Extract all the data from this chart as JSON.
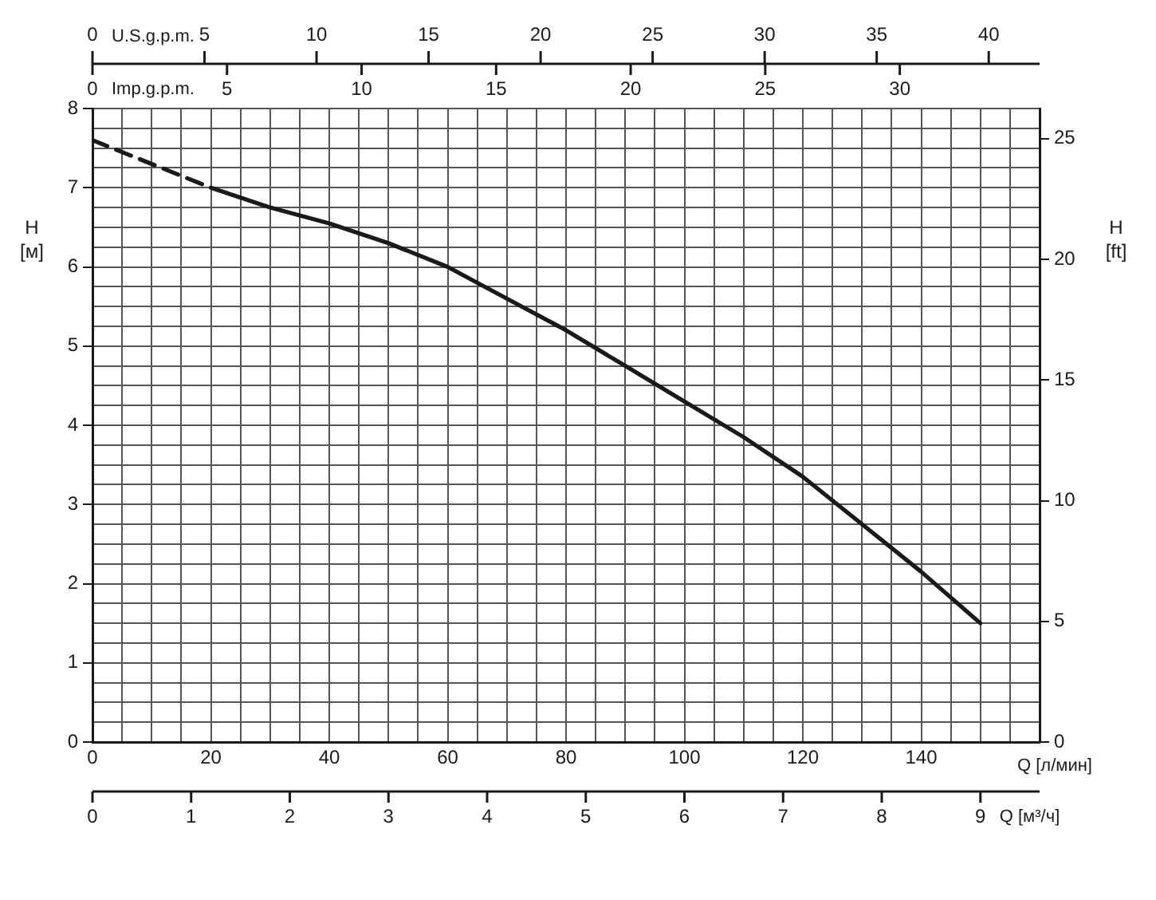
{
  "chart_data": {
    "type": "line",
    "xlabel": "Q [л/мин]",
    "x2label": "U.S.g.p.m.",
    "ylabel": "H [м]",
    "y2label": "H [ft]",
    "xlim": [
      0,
      160
    ],
    "xticks": [
      0,
      {
        "value": 5,
        "label": null
      },
      {
        "value": 10,
        "label": null
      },
      {
        "value": 15,
        "label": null
      },
      20,
      {
        "value": 25,
        "label": null
      },
      {
        "value": 30,
        "label": null
      },
      {
        "value": 35,
        "label": null
      },
      40,
      {
        "value": 45,
        "label": null
      },
      {
        "value": 50,
        "label": null
      },
      {
        "value": 55,
        "label": null
      },
      60,
      {
        "value": 65,
        "label": null
      },
      {
        "value": 70,
        "label": null
      },
      {
        "value": 75,
        "label": null
      },
      80,
      {
        "value": 85,
        "label": null
      },
      {
        "value": 90,
        "label": null
      },
      {
        "value": 95,
        "label": null
      },
      100,
      {
        "value": 105,
        "label": null
      },
      {
        "value": 110,
        "label": null
      },
      {
        "value": 115,
        "label": null
      },
      120,
      {
        "value": 125,
        "label": null
      },
      {
        "value": 130,
        "label": null
      },
      {
        "value": 135,
        "label": null
      },
      140,
      {
        "value": 145,
        "label": null
      },
      {
        "value": 150,
        "label": null
      },
      {
        "value": 155,
        "label": null
      }
    ],
    "x2lim": [
      0,
      42.27
    ],
    "x2ticks": [
      0,
      5,
      10,
      15,
      20,
      25,
      30,
      35,
      40
    ],
    "ylim": [
      0,
      8
    ],
    "yticks": [
      0,
      {
        "value": 0.25,
        "label": null
      },
      {
        "value": 0.5,
        "label": null
      },
      {
        "value": 0.75,
        "label": null
      },
      1,
      {
        "value": 1.25,
        "label": null
      },
      {
        "value": 1.5,
        "label": null
      },
      {
        "value": 1.75,
        "label": null
      },
      2,
      {
        "value": 2.25,
        "label": null
      },
      {
        "value": 2.5,
        "label": null
      },
      {
        "value": 2.75,
        "label": null
      },
      3,
      {
        "value": 3.25,
        "label": null
      },
      {
        "value": 3.5,
        "label": null
      },
      {
        "value": 3.75,
        "label": null
      },
      4,
      {
        "value": 4.25,
        "label": null
      },
      {
        "value": 4.5,
        "label": null
      },
      {
        "value": 4.75,
        "label": null
      },
      5,
      {
        "value": 5.25,
        "label": null
      },
      {
        "value": 5.5,
        "label": null
      },
      {
        "value": 5.75,
        "label": null
      },
      6,
      {
        "value": 6.25,
        "label": null
      },
      {
        "value": 6.5,
        "label": null
      },
      {
        "value": 6.75,
        "label": null
      },
      7,
      {
        "value": 7.25,
        "label": null
      },
      {
        "value": 7.5,
        "label": null
      },
      {
        "value": 7.75,
        "label": null
      },
      8
    ],
    "y2lim": [
      0,
      26.25
    ],
    "y2ticks": [
      0,
      5,
      10,
      15,
      20,
      25
    ],
    "grid": true,
    "legend": false,
    "annotations": [
      "Imp.g.p.m.",
      "0",
      "5",
      "10",
      "15",
      "20",
      "25",
      "30",
      "Q [м³/ч]",
      "0",
      "1",
      "2",
      "3",
      "4",
      "5",
      "6",
      "7",
      "8",
      "9"
    ],
    "series": [
      {
        "color": "#1a1a1a",
        "line_style": "dashed",
        "x": [
          0,
          10,
          20
        ],
        "values": [
          7.6,
          7.3,
          7.0
        ]
      },
      {
        "color": "#1a1a1a",
        "line_style": "solid",
        "x": [
          20,
          30,
          40,
          50,
          60,
          70,
          80,
          90,
          100,
          110,
          120,
          130,
          140,
          150
        ],
        "values": [
          7.0,
          6.75,
          6.55,
          6.3,
          6.0,
          5.6,
          5.2,
          4.75,
          4.3,
          3.85,
          3.35,
          2.75,
          2.15,
          1.5
        ]
      }
    ]
  }
}
